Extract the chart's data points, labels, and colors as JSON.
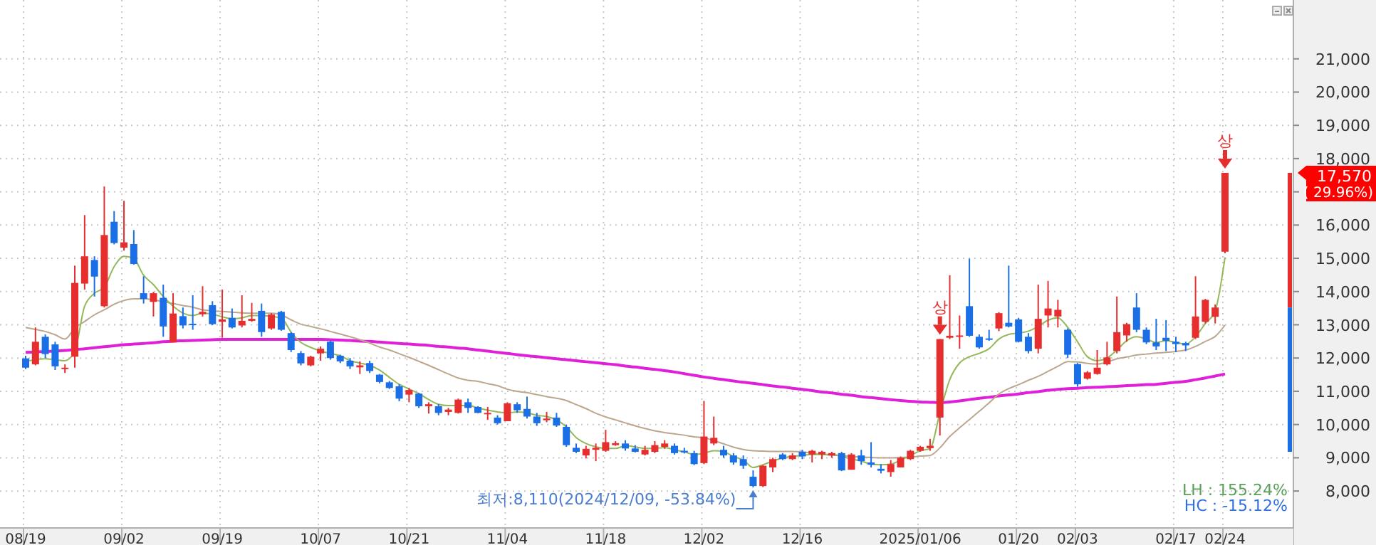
{
  "chart_data": {
    "type": "candlestick",
    "categories": [
      "08/19",
      null,
      null,
      null,
      null,
      null,
      null,
      null,
      null,
      null,
      "09/02",
      null,
      null,
      null,
      null,
      null,
      null,
      null,
      null,
      null,
      "09/19",
      null,
      null,
      null,
      null,
      null,
      null,
      null,
      null,
      null,
      "10/07",
      null,
      null,
      null,
      null,
      null,
      null,
      null,
      null,
      "10/21",
      null,
      null,
      null,
      null,
      null,
      null,
      null,
      null,
      null,
      "11/04",
      null,
      null,
      null,
      null,
      null,
      null,
      null,
      null,
      null,
      "11/18",
      null,
      null,
      null,
      null,
      null,
      null,
      null,
      null,
      null,
      "12/02",
      null,
      null,
      null,
      null,
      null,
      null,
      null,
      null,
      null,
      "12/16",
      null,
      null,
      null,
      null,
      null,
      null,
      null,
      null,
      null,
      null,
      null,
      "2025/01/06",
      null,
      null,
      null,
      null,
      null,
      null,
      null,
      null,
      null,
      "01/20",
      null,
      null,
      null,
      null,
      null,
      "02/03",
      null,
      null,
      null,
      null,
      null,
      null,
      null,
      null,
      null,
      "02/17",
      null,
      null,
      null,
      null,
      "02/24"
    ],
    "ohlc": [
      [
        11990,
        12070,
        11670,
        11710
      ],
      [
        11810,
        12920,
        11780,
        12490
      ],
      [
        12640,
        12710,
        12000,
        12120
      ],
      [
        12410,
        12490,
        11640,
        11750
      ],
      [
        11670,
        11810,
        11550,
        11710
      ],
      [
        12040,
        14780,
        11710,
        14260
      ],
      [
        14240,
        16300,
        14060,
        15060
      ],
      [
        14950,
        15060,
        13850,
        14450
      ],
      [
        13560,
        17160,
        13520,
        15700
      ],
      [
        16100,
        16420,
        15420,
        15460
      ],
      [
        15320,
        16730,
        15230,
        15480
      ],
      [
        15430,
        15850,
        14810,
        14830
      ],
      [
        13950,
        14460,
        13640,
        13780
      ],
      [
        13690,
        13990,
        13250,
        13950
      ],
      [
        13810,
        14210,
        12640,
        12950
      ],
      [
        12470,
        13950,
        12470,
        13340
      ],
      [
        13260,
        13520,
        12890,
        12980
      ],
      [
        13030,
        13890,
        12850,
        13010
      ],
      [
        13320,
        14160,
        13250,
        13390
      ],
      [
        13590,
        13710,
        12990,
        13020
      ],
      [
        13090,
        14060,
        12610,
        13160
      ],
      [
        13210,
        13490,
        12890,
        12920
      ],
      [
        12980,
        13890,
        12920,
        13120
      ],
      [
        13120,
        13660,
        13090,
        13180
      ],
      [
        13420,
        13640,
        12640,
        12780
      ],
      [
        12890,
        13350,
        12850,
        13310
      ],
      [
        13390,
        13420,
        12820,
        12850
      ],
      [
        12750,
        12780,
        12180,
        12240
      ],
      [
        12150,
        12210,
        11780,
        11840
      ],
      [
        11780,
        12070,
        11750,
        12040
      ],
      [
        12140,
        12350,
        11920,
        12280
      ],
      [
        12490,
        12520,
        11950,
        12000
      ],
      [
        12070,
        12100,
        11850,
        11900
      ],
      [
        11920,
        12000,
        11670,
        11750
      ],
      [
        11720,
        11900,
        11520,
        11780
      ],
      [
        11850,
        11920,
        11550,
        11610
      ],
      [
        11500,
        11520,
        11240,
        11280
      ],
      [
        11270,
        11310,
        11070,
        11100
      ],
      [
        11150,
        11210,
        10700,
        10780
      ],
      [
        10900,
        11100,
        10670,
        11040
      ],
      [
        10930,
        10950,
        10500,
        10550
      ],
      [
        10550,
        10670,
        10330,
        10610
      ],
      [
        10550,
        10610,
        10280,
        10350
      ],
      [
        10380,
        10500,
        10280,
        10450
      ],
      [
        10350,
        10780,
        10330,
        10750
      ],
      [
        10670,
        10780,
        10350,
        10500
      ],
      [
        10530,
        10550,
        10340,
        10350
      ],
      [
        10310,
        10530,
        10140,
        10350
      ],
      [
        10210,
        10280,
        10000,
        10040
      ],
      [
        10100,
        10670,
        10100,
        10640
      ],
      [
        10610,
        10670,
        10350,
        10430
      ],
      [
        10470,
        10840,
        10180,
        10240
      ],
      [
        10240,
        10350,
        9960,
        10040
      ],
      [
        10130,
        10380,
        10070,
        10180
      ],
      [
        10210,
        10350,
        9930,
        9970
      ],
      [
        9930,
        10000,
        9330,
        9380
      ],
      [
        9300,
        9430,
        9140,
        9180
      ],
      [
        9070,
        9360,
        8980,
        9270
      ],
      [
        9240,
        9430,
        8900,
        9300
      ],
      [
        9210,
        9840,
        9180,
        9470
      ],
      [
        9380,
        9500,
        9360,
        9440
      ],
      [
        9430,
        9530,
        9210,
        9280
      ],
      [
        9280,
        9380,
        9160,
        9180
      ],
      [
        9100,
        9360,
        9070,
        9240
      ],
      [
        9180,
        9500,
        9140,
        9380
      ],
      [
        9330,
        9530,
        9270,
        9430
      ],
      [
        9360,
        9430,
        9100,
        9140
      ],
      [
        9210,
        9300,
        9130,
        9160
      ],
      [
        9140,
        9210,
        8780,
        8810
      ],
      [
        8840,
        10710,
        8810,
        9640
      ],
      [
        9430,
        10240,
        9380,
        9600
      ],
      [
        9240,
        9360,
        9000,
        9070
      ],
      [
        9070,
        9140,
        8790,
        8860
      ],
      [
        8960,
        9070,
        8670,
        8760
      ],
      [
        8430,
        8620,
        8110,
        8150
      ],
      [
        8150,
        8780,
        8120,
        8760
      ],
      [
        8710,
        9000,
        8570,
        8960
      ],
      [
        9100,
        9140,
        8930,
        8960
      ],
      [
        8960,
        9140,
        8930,
        9070
      ],
      [
        9180,
        9240,
        8960,
        9040
      ],
      [
        9100,
        9240,
        8860,
        9210
      ],
      [
        9100,
        9210,
        8960,
        9180
      ],
      [
        9070,
        9180,
        9000,
        9140
      ],
      [
        9140,
        9180,
        8600,
        8620
      ],
      [
        8640,
        9140,
        8640,
        9100
      ],
      [
        9070,
        9240,
        8790,
        8900
      ],
      [
        8860,
        9470,
        8710,
        8790
      ],
      [
        8670,
        8810,
        8530,
        8610
      ],
      [
        8570,
        8930,
        8430,
        8810
      ],
      [
        8710,
        9040,
        8710,
        9000
      ],
      [
        8960,
        9240,
        8930,
        9210
      ],
      [
        9210,
        9360,
        9180,
        9330
      ],
      [
        9290,
        9570,
        9210,
        9360
      ],
      [
        10210,
        12570,
        9670,
        12570
      ],
      [
        12610,
        14490,
        12570,
        12670
      ],
      [
        12640,
        13280,
        12280,
        12680
      ],
      [
        13560,
        14990,
        12640,
        12670
      ],
      [
        12640,
        12710,
        12280,
        12320
      ],
      [
        12590,
        12850,
        12520,
        12550
      ],
      [
        12890,
        13380,
        12810,
        13350
      ],
      [
        13060,
        14780,
        12920,
        12950
      ],
      [
        13160,
        13210,
        12470,
        12490
      ],
      [
        12640,
        12750,
        12140,
        12210
      ],
      [
        12280,
        14210,
        12140,
        13180
      ],
      [
        13280,
        14320,
        12920,
        13490
      ],
      [
        13250,
        13750,
        12920,
        13450
      ],
      [
        12850,
        12890,
        12000,
        12100
      ],
      [
        11820,
        11850,
        11140,
        11210
      ],
      [
        11380,
        11610,
        11350,
        11570
      ],
      [
        11520,
        12240,
        11500,
        11710
      ],
      [
        11810,
        12490,
        11780,
        12020
      ],
      [
        12210,
        13850,
        12140,
        12780
      ],
      [
        12680,
        13060,
        12490,
        13020
      ],
      [
        13520,
        13950,
        12780,
        12850
      ],
      [
        12850,
        12920,
        12420,
        12470
      ],
      [
        12470,
        13180,
        12240,
        12350
      ],
      [
        12610,
        13140,
        12210,
        12520
      ],
      [
        12490,
        12640,
        12180,
        12420
      ],
      [
        12450,
        12490,
        12210,
        12380
      ],
      [
        12610,
        14460,
        12570,
        13250
      ],
      [
        13090,
        13780,
        13040,
        13750
      ],
      [
        13240,
        13610,
        13040,
        13520
      ],
      [
        15200,
        17570,
        15150,
        17570
      ]
    ],
    "colors": [
      "#1a6fe6",
      "#e62e2e",
      "#1a6fe6",
      "#1a6fe6",
      "#e62e2e",
      "#e62e2e",
      "#e62e2e",
      "#1a6fe6",
      "#e62e2e",
      "#1a6fe6",
      "#e62e2e",
      "#1a6fe6",
      "#1a6fe6",
      "#e62e2e",
      "#1a6fe6",
      "#e62e2e",
      "#1a6fe6",
      "#1a6fe6",
      "#e62e2e",
      "#1a6fe6",
      "#e62e2e",
      "#1a6fe6",
      "#e62e2e",
      "#e62e2e",
      "#1a6fe6",
      "#e62e2e",
      "#1a6fe6",
      "#1a6fe6",
      "#1a6fe6",
      "#e62e2e",
      "#e62e2e",
      "#1a6fe6",
      "#1a6fe6",
      "#1a6fe6",
      "#e62e2e",
      "#1a6fe6",
      "#1a6fe6",
      "#1a6fe6",
      "#1a6fe6",
      "#e62e2e",
      "#1a6fe6",
      "#e62e2e",
      "#1a6fe6",
      "#e62e2e",
      "#e62e2e",
      "#1a6fe6",
      "#1a6fe6",
      "#e62e2e",
      "#1a6fe6",
      "#e62e2e",
      "#1a6fe6",
      "#1a6fe6",
      "#1a6fe6",
      "#e62e2e",
      "#1a6fe6",
      "#1a6fe6",
      "#1a6fe6",
      "#e62e2e",
      "#e62e2e",
      "#e62e2e",
      "#e62e2e",
      "#1a6fe6",
      "#1a6fe6",
      "#e62e2e",
      "#e62e2e",
      "#e62e2e",
      "#1a6fe6",
      "#1a6fe6",
      "#1a6fe6",
      "#e62e2e",
      "#e62e2e",
      "#1a6fe6",
      "#1a6fe6",
      "#1a6fe6",
      "#1a6fe6",
      "#e62e2e",
      "#e62e2e",
      "#1a6fe6",
      "#e62e2e",
      "#1a6fe6",
      "#e62e2e",
      "#e62e2e",
      "#e62e2e",
      "#1a6fe6",
      "#e62e2e",
      "#1a6fe6",
      "#1a6fe6",
      "#1a6fe6",
      "#e62e2e",
      "#e62e2e",
      "#e62e2e",
      "#e62e2e",
      "#e62e2e",
      "#e62e2e",
      "#e62e2e",
      "#e62e2e",
      "#1a6fe6",
      "#1a6fe6",
      "#1a6fe6",
      "#e62e2e",
      "#1a6fe6",
      "#1a6fe6",
      "#1a6fe6",
      "#e62e2e",
      "#e62e2e",
      "#e62e2e",
      "#1a6fe6",
      "#1a6fe6",
      "#e62e2e",
      "#e62e2e",
      "#e62e2e",
      "#e62e2e",
      "#e62e2e",
      "#1a6fe6",
      "#1a6fe6",
      "#1a6fe6",
      "#1a6fe6",
      "#1a6fe6",
      "#1a6fe6",
      "#e62e2e",
      "#e62e2e",
      "#e62e2e",
      "#e62e2e"
    ],
    "series": [
      {
        "type": "line",
        "color": "#e020d8",
        "values": [
          12170,
          12180,
          12200,
          12210,
          12230,
          12250,
          12280,
          12310,
          12340,
          12370,
          12400,
          12420,
          12440,
          12460,
          12490,
          12510,
          12520,
          12530,
          12540,
          12550,
          12560,
          12560,
          12560,
          12560,
          12560,
          12560,
          12560,
          12560,
          12560,
          12560,
          12560,
          12550,
          12540,
          12530,
          12510,
          12500,
          12480,
          12460,
          12440,
          12420,
          12400,
          12380,
          12350,
          12330,
          12300,
          12280,
          12240,
          12210,
          12170,
          12140,
          12100,
          12070,
          12040,
          12010,
          11980,
          11950,
          11920,
          11890,
          11860,
          11830,
          11800,
          11760,
          11730,
          11690,
          11660,
          11620,
          11580,
          11530,
          11480,
          11430,
          11390,
          11350,
          11310,
          11270,
          11240,
          11200,
          11160,
          11130,
          11090,
          11060,
          11020,
          10980,
          10950,
          10910,
          10880,
          10840,
          10810,
          10780,
          10750,
          10720,
          10700,
          10680,
          10670,
          10660,
          10680,
          10710,
          10750,
          10790,
          10820,
          10860,
          10890,
          10920,
          10960,
          10990,
          11030,
          11060,
          11080,
          11090,
          11110,
          11120,
          11140,
          11150,
          11170,
          11180,
          11200,
          11210,
          11240,
          11270,
          11300,
          11350,
          11400,
          11460,
          11520
        ]
      },
      {
        "type": "line",
        "color": "#bca68e",
        "values": [
          12920,
          12860,
          12800,
          12700,
          12570,
          12900,
          13100,
          13300,
          13450,
          13620,
          13730,
          13780,
          13780,
          13750,
          13700,
          13640,
          13580,
          13530,
          13450,
          13420,
          13400,
          13380,
          13360,
          13350,
          13350,
          13350,
          13300,
          13150,
          13020,
          12950,
          12880,
          12800,
          12720,
          12640,
          12550,
          12450,
          12330,
          12240,
          12130,
          12020,
          11900,
          11780,
          11650,
          11520,
          11400,
          11330,
          11300,
          11230,
          11170,
          11060,
          11000,
          10960,
          10900,
          10840,
          10790,
          10720,
          10600,
          10480,
          10340,
          10230,
          10140,
          10050,
          9960,
          9880,
          9810,
          9760,
          9720,
          9680,
          9630,
          9600,
          9520,
          9420,
          9320,
          9250,
          9210,
          9200,
          9190,
          9190,
          9190,
          9180,
          9140,
          9100,
          9080,
          9060,
          9040,
          9020,
          9010,
          9000,
          9000,
          9010,
          9020,
          9050,
          9070,
          9300,
          9640,
          9900,
          10150,
          10400,
          10650,
          10920,
          11080,
          11200,
          11330,
          11450,
          11600,
          11750,
          11890,
          11880,
          11840,
          11820,
          11880,
          11980,
          12030,
          12090,
          12120,
          12150,
          12170,
          12200,
          12240,
          12350,
          12500,
          12650,
          12990
        ]
      },
      {
        "type": "line",
        "color": "#94b85a",
        "values": [
          11900,
          11950,
          11980,
          11950,
          11920,
          12210,
          13560,
          13950,
          14130,
          14750,
          15060,
          14990,
          14490,
          14210,
          13850,
          13560,
          13350,
          13280,
          13350,
          13320,
          13240,
          13180,
          13210,
          13280,
          13280,
          13250,
          13210,
          12780,
          12470,
          12320,
          12210,
          12140,
          12070,
          11920,
          11850,
          11780,
          11640,
          11420,
          11210,
          11070,
          10930,
          10750,
          10610,
          10570,
          10570,
          10570,
          10500,
          10430,
          10380,
          10350,
          10380,
          10350,
          10280,
          10240,
          10140,
          9930,
          9610,
          9430,
          9330,
          9280,
          9280,
          9360,
          9330,
          9280,
          9280,
          9310,
          9240,
          9180,
          9100,
          9140,
          9210,
          9180,
          9040,
          8930,
          8710,
          8790,
          8900,
          9000,
          9040,
          9070,
          9100,
          9100,
          9100,
          9040,
          8960,
          8900,
          8810,
          8790,
          8810,
          8930,
          9070,
          9210,
          9280,
          10350,
          11350,
          11850,
          12040,
          12140,
          12280,
          12570,
          12710,
          12750,
          12810,
          12950,
          13140,
          13210,
          12920,
          12490,
          12040,
          11920,
          12000,
          12240,
          12520,
          12640,
          12570,
          12470,
          12520,
          12470,
          12420,
          12640,
          13040,
          13420,
          15030
        ]
      }
    ],
    "ylim": [
      6890,
      22770
    ],
    "yticks": [
      {
        "value": 8000,
        "label": "8,000"
      },
      {
        "value": 9000,
        "label": "9,000"
      },
      {
        "value": 10000,
        "label": "10,000"
      },
      {
        "value": 11000,
        "label": "11,000"
      },
      {
        "value": 12000,
        "label": "12,000"
      },
      {
        "value": 13000,
        "label": "13,000"
      },
      {
        "value": 14000,
        "label": "14,000"
      },
      {
        "value": 15000,
        "label": "15,000"
      },
      {
        "value": 16000,
        "label": "16,000"
      },
      {
        "value": 17000,
        "label": null
      },
      {
        "value": 18000,
        "label": "18,000"
      },
      {
        "value": 19000,
        "label": "19,000"
      },
      {
        "value": 20000,
        "label": "20,000"
      },
      {
        "value": 21000,
        "label": "21,000"
      }
    ],
    "grid": true,
    "annotations": [
      "최저:8,110(2024/12/09, -53.84%)",
      "상",
      "상",
      "17,570",
      "( 29.96%)",
      "LH :  155.24%",
      "HC :  -15.12%"
    ]
  }
}
